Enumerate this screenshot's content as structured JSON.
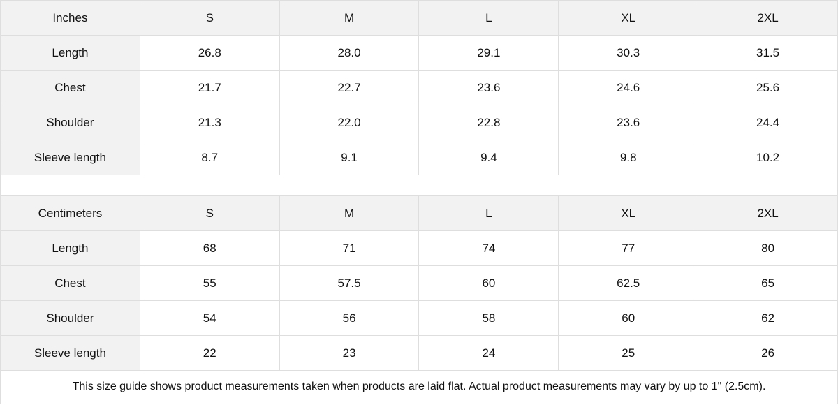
{
  "tables": [
    {
      "unit": "Inches",
      "sizes": [
        "S",
        "M",
        "L",
        "XL",
        "2XL"
      ],
      "rows": [
        {
          "label": "Length",
          "values": [
            "26.8",
            "28.0",
            "29.1",
            "30.3",
            "31.5"
          ]
        },
        {
          "label": "Chest",
          "values": [
            "21.7",
            "22.7",
            "23.6",
            "24.6",
            "25.6"
          ]
        },
        {
          "label": "Shoulder",
          "values": [
            "21.3",
            "22.0",
            "22.8",
            "23.6",
            "24.4"
          ]
        },
        {
          "label": "Sleeve length",
          "values": [
            "8.7",
            "9.1",
            "9.4",
            "9.8",
            "10.2"
          ]
        }
      ]
    },
    {
      "unit": "Centimeters",
      "sizes": [
        "S",
        "M",
        "L",
        "XL",
        "2XL"
      ],
      "rows": [
        {
          "label": "Length",
          "values": [
            "68",
            "71",
            "74",
            "77",
            "80"
          ]
        },
        {
          "label": "Chest",
          "values": [
            "55",
            "57.5",
            "60",
            "62.5",
            "65"
          ]
        },
        {
          "label": "Shoulder",
          "values": [
            "54",
            "56",
            "58",
            "60",
            "62"
          ]
        },
        {
          "label": "Sleeve length",
          "values": [
            "22",
            "23",
            "24",
            "25",
            "26"
          ]
        }
      ]
    }
  ],
  "note": "This size guide shows product measurements taken when products are laid flat.  Actual product measurements may vary by up to 1\" (2.5cm).",
  "colors": {
    "header_bg": "#f2f2f2",
    "border": "#dedede"
  }
}
